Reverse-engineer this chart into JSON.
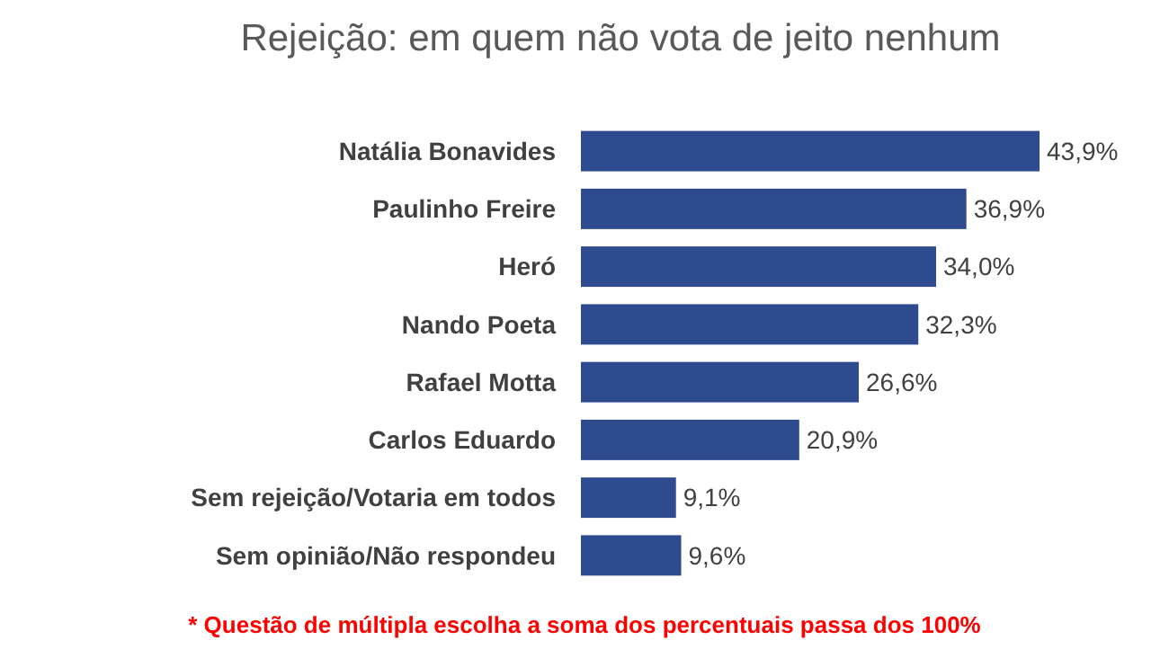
{
  "chart_data": {
    "type": "bar",
    "orientation": "horizontal",
    "title": "Rejeição: em quem não vota de jeito nenhum",
    "categories": [
      "Natália Bonavides",
      "Paulinho Freire",
      "Heró",
      "Nando Poeta",
      "Rafael Motta",
      "Carlos Eduardo",
      "Sem rejeição/Votaria em todos",
      "Sem opinião/Não respondeu"
    ],
    "values": [
      43.9,
      36.9,
      34.0,
      32.3,
      26.6,
      20.9,
      9.1,
      9.6
    ],
    "value_labels": [
      "43,9%",
      "36,9%",
      "34,0%",
      "32,3%",
      "26,6%",
      "20,9%",
      "9,1%",
      "9,6%"
    ],
    "color": "#2f4b8f",
    "annotations": [
      "* Questão de múltipla escolha a soma dos percentuais passa dos 100%"
    ]
  }
}
